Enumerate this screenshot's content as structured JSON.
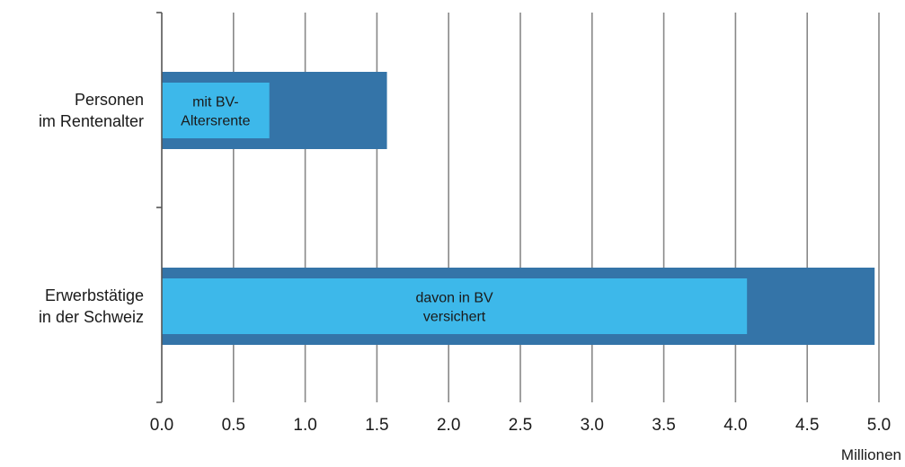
{
  "colors": {
    "outer_bar": "#3474a8",
    "inner_bar": "#3db8ea",
    "gridline": "#888888",
    "axis": "#555555",
    "background": "#ffffff"
  },
  "chart_data": {
    "type": "bar",
    "orientation": "horizontal",
    "categories": [
      [
        "Personen",
        "im Rentenalter"
      ],
      [
        "Erwerbstätige",
        "in der Schweiz"
      ]
    ],
    "series": [
      {
        "values": [
          1.57,
          4.97
        ]
      },
      {
        "values": [
          0.75,
          4.08
        ],
        "labels": [
          [
            "mit BV-",
            "Altersrente"
          ],
          [
            "davon in BV",
            "versichert"
          ]
        ]
      }
    ],
    "xlim": [
      0,
      5.0
    ],
    "ticks": [
      "0.0",
      "0.5",
      "1.0",
      "1.5",
      "2.0",
      "2.5",
      "3.0",
      "3.5",
      "4.0",
      "4.5",
      "5.0"
    ],
    "tick_values": [
      0,
      0.5,
      1.0,
      1.5,
      2.0,
      2.5,
      3.0,
      3.5,
      4.0,
      4.5,
      5.0
    ],
    "xlabel": "Millionen",
    "grid": true,
    "legend": "none"
  }
}
